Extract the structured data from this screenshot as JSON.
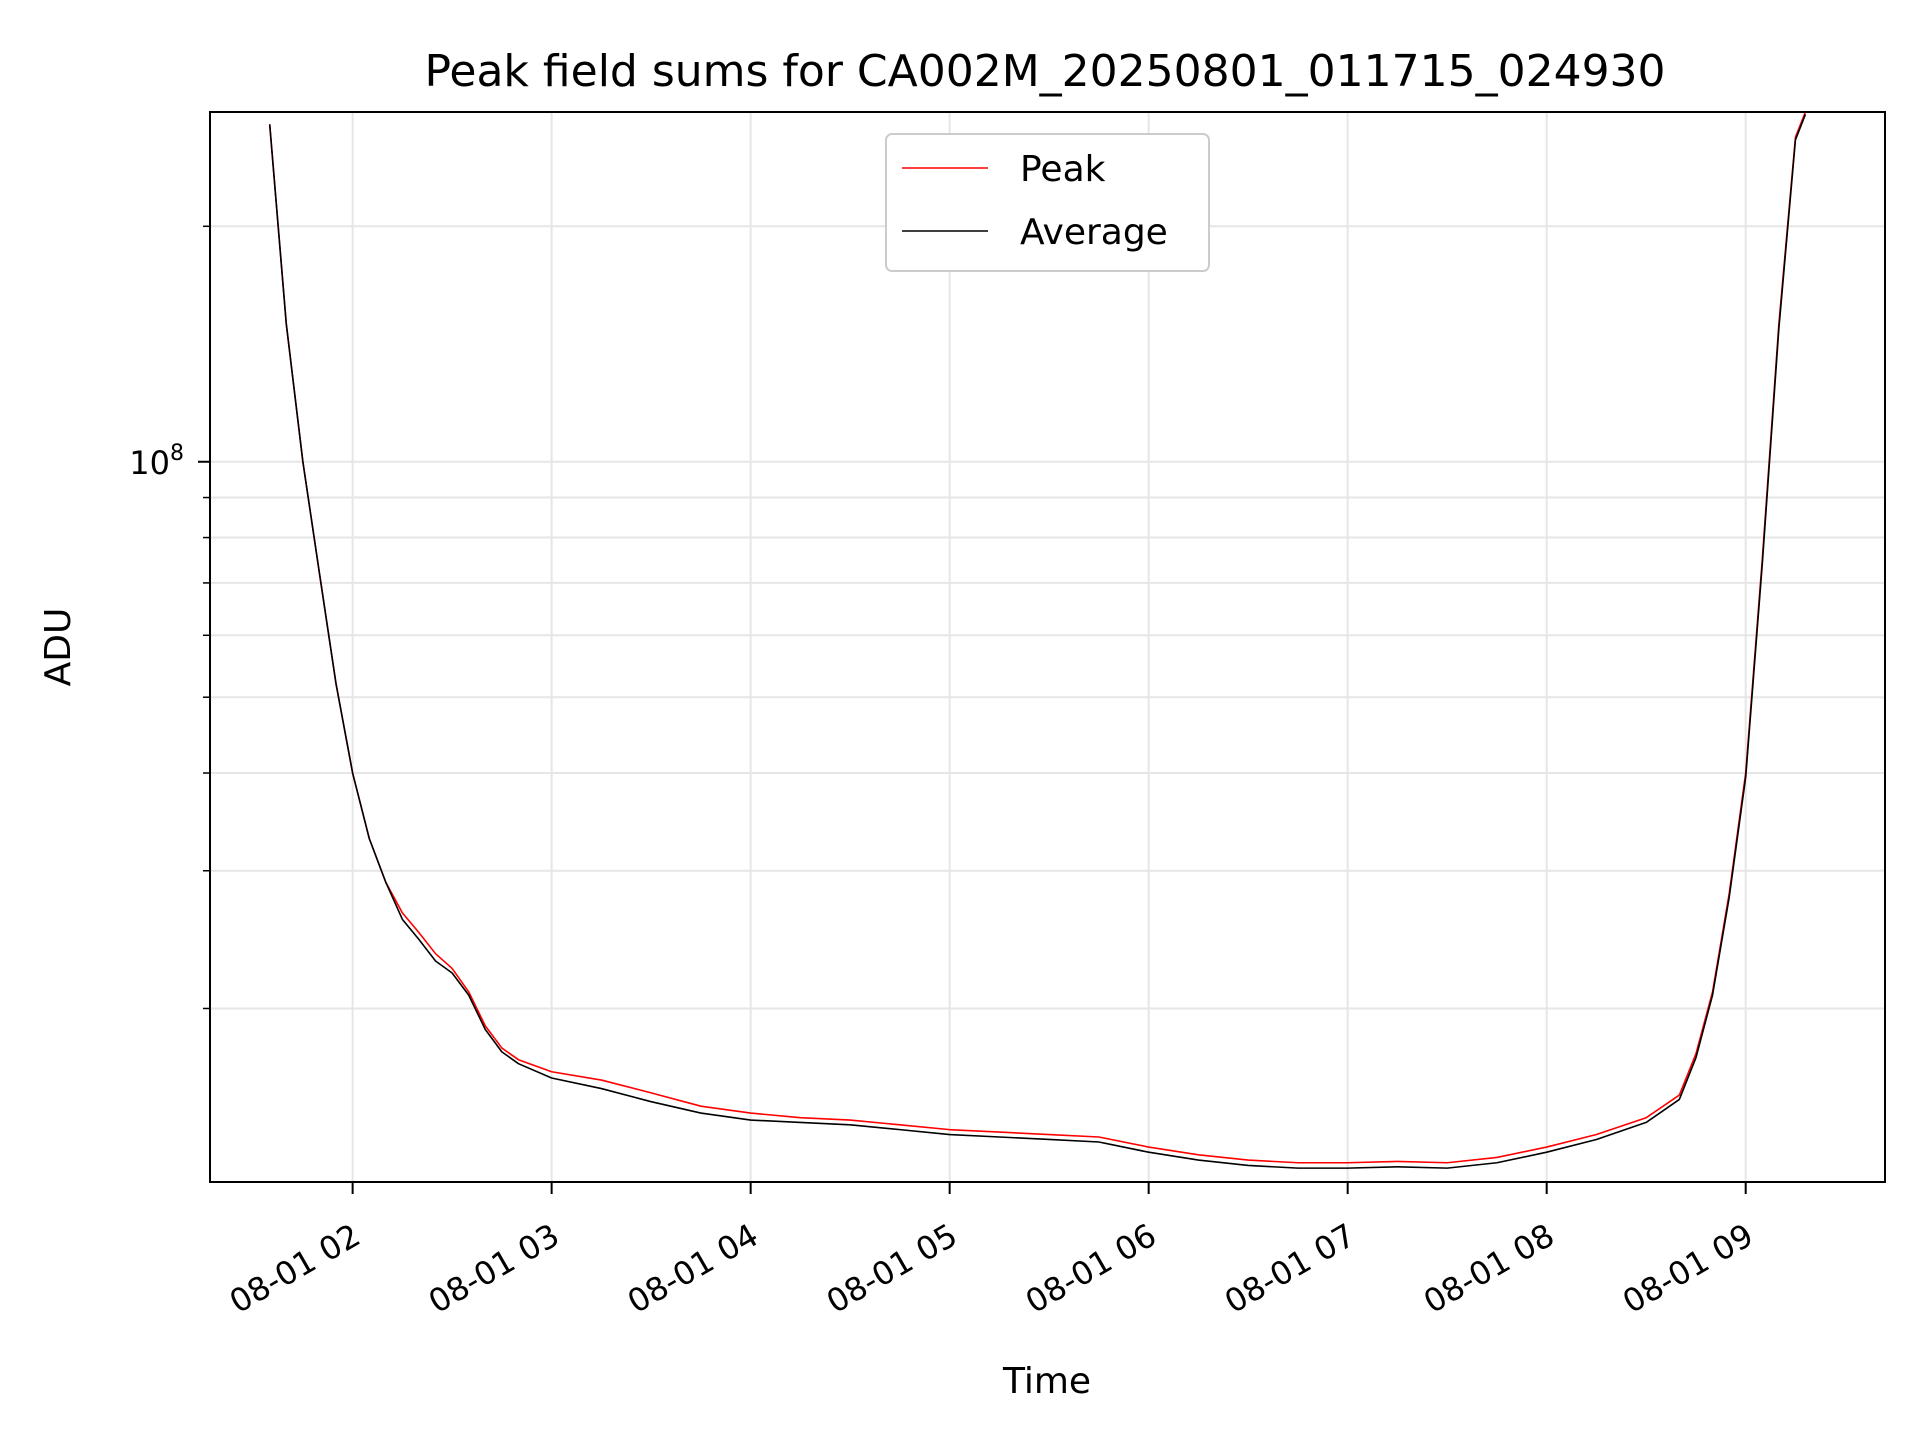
{
  "chart_data": {
    "type": "line",
    "title": "Peak field sums for CA002M_20250801_011715_024930",
    "xlabel": "Time",
    "ylabel": "ADU",
    "yscale": "log",
    "ylim": [
      12000000.0,
      280000000.0
    ],
    "xlim": [
      "08-01 01:17",
      "08-01 09:42"
    ],
    "x_tick_labels": [
      "08-01 02",
      "08-01 03",
      "08-01 04",
      "08-01 05",
      "08-01 06",
      "08-01 07",
      "08-01 08",
      "08-01 09"
    ],
    "x_tick_times": [
      "02:00",
      "03:00",
      "04:00",
      "05:00",
      "06:00",
      "07:00",
      "08:00",
      "09:00"
    ],
    "y_tick_labels": [
      {
        "base": "10",
        "exp": "8"
      }
    ],
    "grid": true,
    "legend_position": "upper center",
    "series": [
      {
        "name": "Peak",
        "color": "#ff0000",
        "points": [
          [
            "01:35",
            270000000
          ],
          [
            "01:40",
            150000000
          ],
          [
            "01:45",
            100000000
          ],
          [
            "01:50",
            72000000
          ],
          [
            "01:55",
            52000000
          ],
          [
            "02:00",
            40000000
          ],
          [
            "02:05",
            33000000
          ],
          [
            "02:10",
            29000000
          ],
          [
            "02:15",
            26500000
          ],
          [
            "02:20",
            25000000
          ],
          [
            "02:25",
            23500000
          ],
          [
            "02:30",
            22500000
          ],
          [
            "02:35",
            21000000
          ],
          [
            "02:40",
            19000000
          ],
          [
            "02:45",
            17800000
          ],
          [
            "02:50",
            17200000
          ],
          [
            "03:00",
            16600000
          ],
          [
            "03:15",
            16200000
          ],
          [
            "03:30",
            15600000
          ],
          [
            "03:45",
            15000000
          ],
          [
            "04:00",
            14700000
          ],
          [
            "04:15",
            14500000
          ],
          [
            "04:30",
            14400000
          ],
          [
            "04:45",
            14200000
          ],
          [
            "05:00",
            14000000
          ],
          [
            "05:15",
            13900000
          ],
          [
            "05:30",
            13800000
          ],
          [
            "05:45",
            13700000
          ],
          [
            "06:00",
            13300000
          ],
          [
            "06:15",
            13000000
          ],
          [
            "06:30",
            12800000
          ],
          [
            "06:45",
            12700000
          ],
          [
            "07:00",
            12700000
          ],
          [
            "07:15",
            12750000
          ],
          [
            "07:30",
            12700000
          ],
          [
            "07:45",
            12900000
          ],
          [
            "08:00",
            13300000
          ],
          [
            "08:15",
            13800000
          ],
          [
            "08:30",
            14500000
          ],
          [
            "08:40",
            15500000
          ],
          [
            "08:45",
            17500000
          ],
          [
            "08:50",
            21000000
          ],
          [
            "08:55",
            28000000
          ],
          [
            "09:00",
            40000000
          ],
          [
            "09:05",
            75000000
          ],
          [
            "09:10",
            150000000
          ],
          [
            "09:15",
            260000000
          ],
          [
            "09:18",
            280000000
          ]
        ]
      },
      {
        "name": "Average",
        "color": "#000000",
        "points": [
          [
            "01:35",
            270000000
          ],
          [
            "01:40",
            150000000
          ],
          [
            "01:45",
            100000000
          ],
          [
            "01:50",
            72000000
          ],
          [
            "01:55",
            52000000
          ],
          [
            "02:00",
            40000000
          ],
          [
            "02:05",
            33000000
          ],
          [
            "02:10",
            29000000
          ],
          [
            "02:15",
            26000000
          ],
          [
            "02:20",
            24500000
          ],
          [
            "02:25",
            23000000
          ],
          [
            "02:30",
            22200000
          ],
          [
            "02:35",
            20800000
          ],
          [
            "02:40",
            18800000
          ],
          [
            "02:45",
            17600000
          ],
          [
            "02:50",
            17000000
          ],
          [
            "03:00",
            16300000
          ],
          [
            "03:15",
            15800000
          ],
          [
            "03:30",
            15200000
          ],
          [
            "03:45",
            14700000
          ],
          [
            "04:00",
            14400000
          ],
          [
            "04:15",
            14300000
          ],
          [
            "04:30",
            14200000
          ],
          [
            "04:45",
            14000000
          ],
          [
            "05:00",
            13800000
          ],
          [
            "05:15",
            13700000
          ],
          [
            "05:30",
            13600000
          ],
          [
            "05:45",
            13500000
          ],
          [
            "06:00",
            13100000
          ],
          [
            "06:15",
            12800000
          ],
          [
            "06:30",
            12600000
          ],
          [
            "06:45",
            12500000
          ],
          [
            "07:00",
            12500000
          ],
          [
            "07:15",
            12550000
          ],
          [
            "07:30",
            12500000
          ],
          [
            "07:45",
            12700000
          ],
          [
            "08:00",
            13100000
          ],
          [
            "08:15",
            13600000
          ],
          [
            "08:30",
            14300000
          ],
          [
            "08:40",
            15300000
          ],
          [
            "08:45",
            17300000
          ],
          [
            "08:50",
            20800000
          ],
          [
            "08:55",
            27700000
          ],
          [
            "09:00",
            39500000
          ],
          [
            "09:05",
            74000000
          ],
          [
            "09:10",
            148000000
          ],
          [
            "09:15",
            258000000
          ],
          [
            "09:18",
            278000000
          ]
        ]
      }
    ]
  }
}
